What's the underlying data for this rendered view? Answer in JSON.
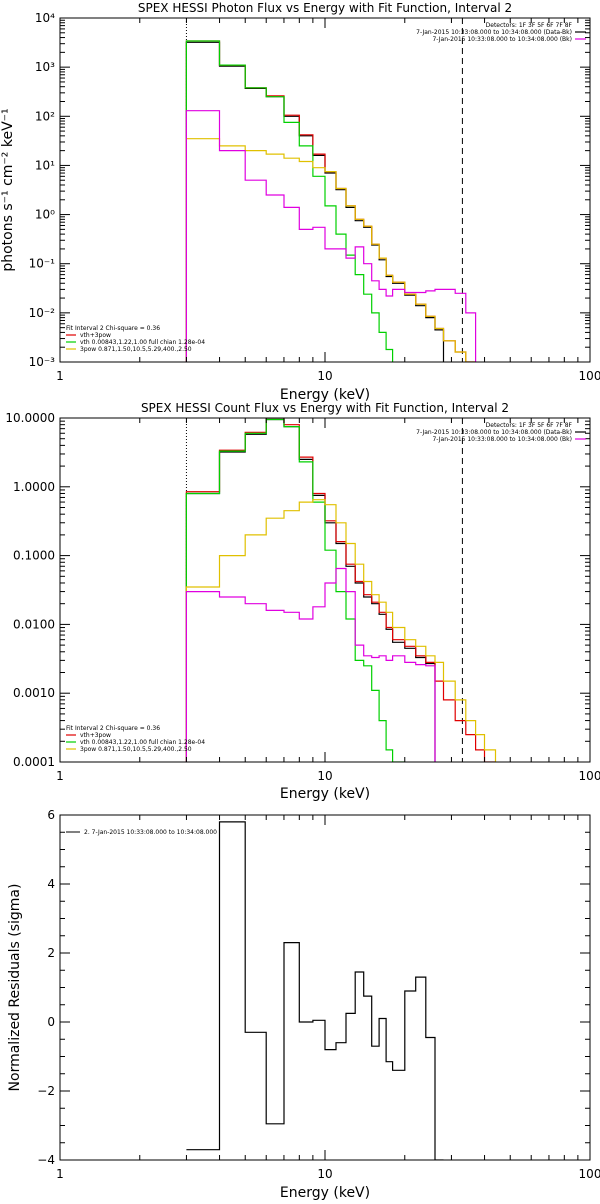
{
  "colors": {
    "total": "#000000",
    "fit": "#e00000",
    "thermal": "#00d000",
    "powerlaw": "#e0c000",
    "background": "#e000e0"
  },
  "chart_data": [
    {
      "type": "line",
      "title": "SPEX HESSI Photon Flux vs Energy with Fit Function, Interval 2",
      "xlabel": "Energy (keV)",
      "ylabel": "photons s⁻¹ cm⁻² keV⁻¹",
      "xscale": "log",
      "yscale": "log",
      "xlim": [
        1,
        100
      ],
      "ylim": [
        0.001,
        10000
      ],
      "xticks": [
        {
          "v": 1,
          "label": "1"
        },
        {
          "v": 10,
          "label": "10"
        },
        {
          "v": 100,
          "label": "100"
        }
      ],
      "yticks": [
        {
          "v": 0.001,
          "label": "10⁻³"
        },
        {
          "v": 0.01,
          "label": "10⁻²"
        },
        {
          "v": 0.1,
          "label": "10⁻¹"
        },
        {
          "v": 1,
          "label": "10⁰"
        },
        {
          "v": 10,
          "label": "10¹"
        },
        {
          "v": 100,
          "label": "10²"
        },
        {
          "v": 1000,
          "label": "10³"
        },
        {
          "v": 10000,
          "label": "10⁴"
        }
      ],
      "vlines": [
        {
          "x": 3,
          "style": "dotted"
        },
        {
          "x": 33,
          "style": "dashed"
        }
      ],
      "info_lines": [
        "Detectors: 1F 3F 5F 6F 7F 8F",
        "7-Jan-2015 10:33:08.000 to 10:34:08.000 (Data-Bk)",
        "7-Jan-2015 10:33:08.000 to 10:34:08.000 (Bk)"
      ],
      "legend_title": "Fit Interval 2   Chi-square = 0.36",
      "legend_items": [
        "vth+3pow",
        "vth 0.00843,1.22,1.00  full chian 1.28e-04",
        "3pow 0.871,1.50,10.5,5.29,400.,2.50"
      ],
      "edges": [
        3,
        4,
        5,
        6,
        7,
        8,
        9,
        10,
        11,
        12,
        13,
        14,
        15,
        16,
        17,
        18,
        20,
        22,
        24,
        26,
        28,
        31,
        34,
        37,
        40,
        44,
        50
      ],
      "series": [
        {
          "name": "",
          "color_key": "total",
          "values": [
            3200,
            1050,
            370,
            250,
            100,
            40,
            16,
            7,
            3.2,
            1.4,
            0.75,
            0.55,
            0.24,
            0.12,
            0.055,
            0.04,
            0.023,
            0.014,
            0.008,
            0.0045,
            null,
            null,
            null,
            null,
            null,
            null
          ]
        },
        {
          "name": "",
          "color_key": "fit",
          "values": [
            3400,
            1100,
            380,
            260,
            105,
            42,
            17,
            7.5,
            3.4,
            1.5,
            0.8,
            0.58,
            0.25,
            0.13,
            0.058,
            0.042,
            0.024,
            0.015,
            0.0085,
            0.0048,
            0.0027,
            0.0016,
            0.001,
            null,
            null,
            null
          ]
        },
        {
          "name": "",
          "color_key": "thermal",
          "values": [
            3400,
            1100,
            380,
            250,
            75,
            25,
            6,
            1.5,
            0.4,
            0.15,
            0.06,
            0.024,
            0.01,
            0.004,
            0.0018,
            0.0008,
            null,
            null,
            null,
            null,
            null,
            null,
            null,
            null,
            null,
            null
          ]
        },
        {
          "name": "",
          "color_key": "powerlaw",
          "values": [
            35,
            25,
            20,
            17,
            14,
            12,
            9,
            7.5,
            3.4,
            1.5,
            0.8,
            0.58,
            0.25,
            0.13,
            0.058,
            0.042,
            0.024,
            0.015,
            0.0085,
            0.0048,
            0.0027,
            0.0016,
            0.001,
            null,
            null,
            null
          ]
        },
        {
          "name": "",
          "color_key": "background",
          "values": [
            130,
            20,
            5,
            2.5,
            1.4,
            0.5,
            0.55,
            0.2,
            0.2,
            0.13,
            0.22,
            0.1,
            0.045,
            0.03,
            0.022,
            0.03,
            0.026,
            0.026,
            0.028,
            0.03,
            0.03,
            0.025,
            0.01,
            null,
            null,
            null
          ]
        }
      ]
    },
    {
      "type": "line",
      "title": "SPEX HESSI Count Flux vs Energy with Fit Function, Interval 2",
      "xlabel": "Energy (keV)",
      "ylabel": "",
      "xscale": "log",
      "yscale": "log",
      "xlim": [
        1,
        100
      ],
      "ylim": [
        0.0001,
        10
      ],
      "xticks": [
        {
          "v": 1,
          "label": "1"
        },
        {
          "v": 10,
          "label": "10"
        },
        {
          "v": 100,
          "label": "100"
        }
      ],
      "yticks": [
        {
          "v": 0.0001,
          "label": "0.0001"
        },
        {
          "v": 0.001,
          "label": "0.0010"
        },
        {
          "v": 0.01,
          "label": "0.0100"
        },
        {
          "v": 0.1,
          "label": "0.1000"
        },
        {
          "v": 1,
          "label": "1.0000"
        },
        {
          "v": 10,
          "label": "10.0000"
        }
      ],
      "vlines": [
        {
          "x": 3,
          "style": "dotted"
        },
        {
          "x": 33,
          "style": "dashed"
        }
      ],
      "info_lines": [
        "Detectors: 1F 3F 5F 6F 7F 8F",
        "7-Jan-2015 10:33:08.000 to 10:34:08.000 (Data-Bk)",
        "7-Jan-2015 10:33:08.000 to 10:34:08.000 (Bk)"
      ],
      "legend_title": "Fit Interval 2   Chi-square = 0.36",
      "legend_items": [
        "vth+3pow",
        "vth 0.00843,1.22,1.00  full chian 1.28e-04",
        "3pow 0.871,1.50,10.5,5.29,400.,2.50"
      ],
      "edges": [
        3,
        4,
        5,
        6,
        7,
        8,
        9,
        10,
        11,
        12,
        13,
        14,
        15,
        16,
        17,
        18,
        20,
        22,
        24,
        26,
        28,
        31,
        34,
        37,
        40,
        44,
        50
      ],
      "series": [
        {
          "name": "",
          "color_key": "total",
          "values": [
            0.8,
            3.2,
            5.8,
            9.5,
            7.5,
            2.5,
            0.75,
            0.3,
            0.15,
            0.07,
            0.04,
            0.025,
            0.02,
            0.014,
            0.0085,
            0.0055,
            0.0045,
            0.0033,
            0.0027,
            null,
            null,
            null,
            null,
            null,
            null,
            null
          ]
        },
        {
          "name": "",
          "color_key": "fit",
          "values": [
            0.85,
            3.4,
            6.2,
            10,
            8,
            2.7,
            0.8,
            0.32,
            0.16,
            0.075,
            0.042,
            0.027,
            0.021,
            0.015,
            0.009,
            0.006,
            0.0048,
            0.0035,
            0.0028,
            0.0015,
            0.0008,
            0.0004,
            0.00025,
            0.00015,
            0.0001,
            null
          ]
        },
        {
          "name": "",
          "color_key": "thermal",
          "values": [
            0.8,
            3.3,
            6,
            9.5,
            7.5,
            2.3,
            0.6,
            0.12,
            0.03,
            0.012,
            0.003,
            0.0025,
            0.0011,
            0.0004,
            0.00015,
            0.0001,
            null,
            null,
            null,
            null,
            null,
            null,
            null,
            null,
            null,
            null
          ]
        },
        {
          "name": "",
          "color_key": "powerlaw",
          "values": [
            0.035,
            0.1,
            0.2,
            0.35,
            0.45,
            0.6,
            0.65,
            0.55,
            0.3,
            0.15,
            0.075,
            0.042,
            0.027,
            0.021,
            0.015,
            0.009,
            0.006,
            0.0048,
            0.0035,
            0.0028,
            0.0015,
            0.0008,
            0.0004,
            0.00025,
            0.00015,
            null
          ]
        },
        {
          "name": "",
          "color_key": "background",
          "values": [
            0.03,
            0.025,
            0.02,
            0.016,
            0.015,
            0.012,
            0.018,
            0.04,
            0.065,
            0.03,
            0.005,
            0.0035,
            0.0033,
            0.0035,
            0.003,
            0.0035,
            0.0028,
            0.0026,
            0.0025,
            null,
            null,
            null,
            null,
            null,
            null,
            null
          ]
        }
      ]
    },
    {
      "type": "line",
      "title": "",
      "xlabel": "Energy (keV)",
      "ylabel": "Normalized Residuals (sigma)",
      "xscale": "log",
      "yscale": "linear",
      "xlim": [
        1,
        100
      ],
      "ylim": [
        -4,
        6
      ],
      "xticks": [
        {
          "v": 1,
          "label": "1"
        },
        {
          "v": 10,
          "label": "10"
        },
        {
          "v": 100,
          "label": "100"
        }
      ],
      "yticks": [
        {
          "v": -4,
          "label": "−4"
        },
        {
          "v": -2,
          "label": "−2"
        },
        {
          "v": 0,
          "label": "0"
        },
        {
          "v": 2,
          "label": "2"
        },
        {
          "v": 4,
          "label": "4"
        },
        {
          "v": 6,
          "label": "6"
        }
      ],
      "legend_items": [
        "2. 7-Jan-2015 10:33:08.000 to 10:34:08.000"
      ],
      "edges": [
        3,
        4,
        5,
        6,
        7,
        8,
        9,
        10,
        11,
        12,
        13,
        14,
        15,
        16,
        17,
        18,
        20,
        22,
        24,
        26,
        28,
        31,
        34
      ],
      "series": [
        {
          "name": "",
          "color_key": "total",
          "values": [
            -3.7,
            5.8,
            -0.3,
            -2.95,
            2.3,
            0.0,
            0.05,
            -0.8,
            -0.6,
            0.25,
            1.45,
            0.75,
            -0.7,
            0.1,
            -1.15,
            -1.4,
            0.9,
            1.3,
            -0.45,
            -4.0,
            null,
            null
          ]
        }
      ]
    }
  ]
}
